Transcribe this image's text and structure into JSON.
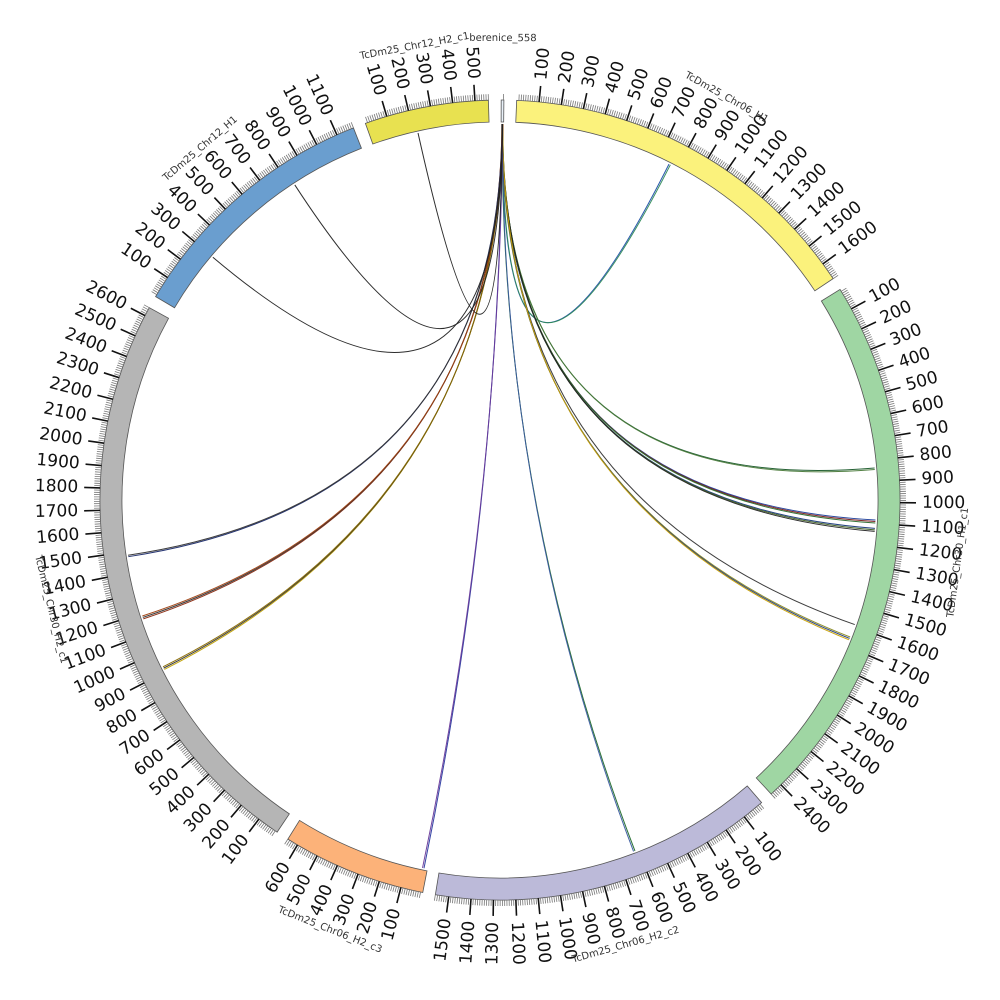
{
  "diagram": {
    "type": "circos",
    "segments": [
      {
        "name": "berenice_558",
        "length": 12,
        "color": "#e8f0f8",
        "tick_max": 0
      },
      {
        "name": "TcDm25_Chr06_H1",
        "length": 1680,
        "color": "#fbf27c",
        "tick_max": 1600
      },
      {
        "name": "TcDm25_Chr30_H1_c1",
        "length": 2460,
        "color": "#9fd6a3",
        "tick_max": 2400
      },
      {
        "name": "TcDm25_Chr06_H2_c2",
        "length": 1560,
        "color": "#bcbad9",
        "tick_max": 1500
      },
      {
        "name": "TcDm25_Chr06_H2_c3",
        "length": 650,
        "color": "#fcb279",
        "tick_max": 600
      },
      {
        "name": "TcDm25_Chr30_H2_c1",
        "length": 2640,
        "color": "#b5b5b5",
        "tick_max": 2600
      },
      {
        "name": "TcDm25_Chr12_H1",
        "length": 1180,
        "color": "#6a9ecf",
        "tick_max": 1100
      },
      {
        "name": "TcDm25_Chr12_H2_c1",
        "length": 560,
        "color": "#e8e150",
        "tick_max": 500
      }
    ],
    "links": [
      {
        "to": "TcDm25_Chr06_H1",
        "pos": 760,
        "colors": [
          "#1f4fa8",
          "#2e8b57"
        ]
      },
      {
        "to": "TcDm25_Chr30_H1_c1",
        "pos": 840,
        "colors": [
          "#1a5a2a",
          "#4a7a3a"
        ]
      },
      {
        "to": "TcDm25_Chr30_H1_c1",
        "pos": 1090,
        "colors": [
          "#1f3f9a",
          "#7a1a1a",
          "#2a6a2a"
        ]
      },
      {
        "to": "TcDm25_Chr30_H1_c1",
        "pos": 1130,
        "colors": [
          "#1a3a7a",
          "#3a5a1a",
          "#222222"
        ]
      },
      {
        "to": "TcDm25_Chr30_H1_c1",
        "pos": 1590,
        "colors": [
          "#333333"
        ]
      },
      {
        "to": "TcDm25_Chr30_H1_c1",
        "pos": 1660,
        "colors": [
          "#8a8a20",
          "#203a80",
          "#c8a000"
        ]
      },
      {
        "to": "TcDm25_Chr06_H2_c2",
        "pos": 620,
        "colors": [
          "#1f6a2a",
          "#3a5aa0"
        ]
      },
      {
        "to": "TcDm25_Chr06_H2_c3",
        "pos": 20,
        "colors": [
          "#2a3aa0",
          "#6a3a9a"
        ]
      },
      {
        "to": "TcDm25_Chr30_H2_c1",
        "pos": 920,
        "colors": [
          "#c0a000",
          "#333333",
          "#8a6a00"
        ]
      },
      {
        "to": "TcDm25_Chr30_H2_c1",
        "pos": 1180,
        "colors": [
          "#8a2a10",
          "#333333",
          "#a04010"
        ]
      },
      {
        "to": "TcDm25_Chr30_H2_c1",
        "pos": 1480,
        "colors": [
          "#1a2a6a",
          "#333333"
        ]
      },
      {
        "to": "TcDm25_Chr12_H1",
        "pos": 300,
        "colors": [
          "#222222"
        ]
      },
      {
        "to": "TcDm25_Chr12_H1",
        "pos": 820,
        "colors": [
          "#222222"
        ]
      },
      {
        "to": "TcDm25_Chr12_H2_c1",
        "pos": 220,
        "colors": [
          "#222222"
        ]
      }
    ],
    "link_source": "berenice_558",
    "tick_interval": 100
  }
}
